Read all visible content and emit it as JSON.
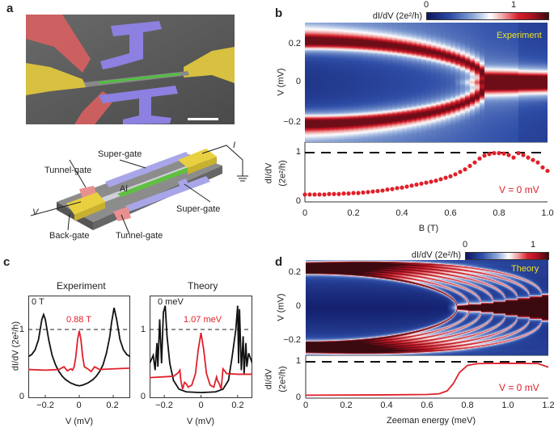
{
  "panels": {
    "a": {
      "label": "a",
      "diagram_labels": {
        "super_gate_top": "Super-gate",
        "tunnel_gate_top": "Tunnel-gate",
        "al": "Al",
        "v": "V",
        "i": "I",
        "super_gate_bottom": "Super-gate",
        "back_gate": "Back-gate",
        "tunnel_gate_bottom": "Tunnel-gate"
      },
      "colors": {
        "tunnel_gate": "#e8868a",
        "super_gate": "#9a98e0",
        "lead": "#e8d040",
        "wire": "#60c040",
        "substrate": "#8a8a8a"
      }
    },
    "b": {
      "label": "b",
      "colorbar": {
        "label": "dI/dV (2e²/h)",
        "tick_0": "0",
        "tick_1": "1"
      },
      "heatmap_annotation": "Experiment",
      "heatmap_ylabel": "V (mV)",
      "heatmap_yticks": [
        "0.2",
        "0",
        "−0.2"
      ],
      "line_ylabel_1": "dI/dV",
      "line_ylabel_2": "(2e²/h)",
      "line_yticks": [
        "1",
        "0"
      ],
      "line_annotation": "V = 0 mV",
      "xlabel": "B (T)",
      "xticks": [
        "0",
        "0.2",
        "0.4",
        "0.6",
        "0.8",
        "1.0"
      ]
    },
    "c": {
      "label": "c",
      "ylabel": "dI/dV (2e²/h)",
      "yticks": [
        "1",
        "0"
      ],
      "left": {
        "title": "Experiment",
        "black_label": "0 T",
        "red_label": "0.88 T",
        "xlabel": "V (mV)",
        "xticks": [
          "−0.2",
          "0",
          "0.2"
        ]
      },
      "right": {
        "title": "Theory",
        "black_label": "0 meV",
        "red_label": "1.07 meV",
        "xlabel": "V (mV)",
        "xticks": [
          "−0.2",
          "0",
          "0.2"
        ]
      }
    },
    "d": {
      "label": "d",
      "colorbar": {
        "label": "dI/dV (2e²/h)",
        "tick_0": "0",
        "tick_1": "1"
      },
      "heatmap_annotation": "Theory",
      "heatmap_ylabel": "V (mV)",
      "heatmap_yticks": [
        "0.2",
        "0",
        "−0.2"
      ],
      "line_ylabel_1": "dI/dV",
      "line_ylabel_2": "(2e²/h)",
      "line_yticks": [
        "1",
        "0"
      ],
      "line_annotation": "V = 0 mV",
      "xlabel": "Zeeman energy (meV)",
      "xticks": [
        "0",
        "0.2",
        "0.4",
        "0.6",
        "0.8",
        "1.0",
        "1.2"
      ]
    }
  },
  "chart_data": [
    {
      "id": "b-heatmap",
      "type": "heatmap",
      "xlabel": "B (T)",
      "ylabel": "V (mV)",
      "xlim": [
        0,
        1.0
      ],
      "ylim": [
        -0.3,
        0.3
      ],
      "colorbar_label": "dI/dV (2e²/h)",
      "clim": [
        0,
        1.4
      ],
      "annotation": "Experiment",
      "features": {
        "peak_V_at_B0": 0.2,
        "zero_bias_peak_onset_B": 0.7
      }
    },
    {
      "id": "b-line",
      "type": "scatter",
      "xlabel": "B (T)",
      "ylabel": "dI/dV (2e²/h)",
      "xlim": [
        0,
        1.0
      ],
      "ylim": [
        0,
        1.1
      ],
      "reference_line_y": 1,
      "color": "#e0202a",
      "annotation": "V = 0 mV",
      "x": [
        0,
        0.02,
        0.04,
        0.06,
        0.08,
        0.1,
        0.12,
        0.14,
        0.16,
        0.18,
        0.2,
        0.22,
        0.24,
        0.26,
        0.28,
        0.3,
        0.32,
        0.34,
        0.36,
        0.38,
        0.4,
        0.42,
        0.44,
        0.46,
        0.48,
        0.5,
        0.52,
        0.54,
        0.56,
        0.58,
        0.6,
        0.62,
        0.64,
        0.66,
        0.68,
        0.7,
        0.72,
        0.74,
        0.76,
        0.78,
        0.8,
        0.82,
        0.84,
        0.86,
        0.88,
        0.9,
        0.92,
        0.94,
        0.96,
        0.98,
        1.0
      ],
      "y": [
        0.15,
        0.15,
        0.15,
        0.15,
        0.15,
        0.16,
        0.16,
        0.16,
        0.17,
        0.17,
        0.18,
        0.18,
        0.19,
        0.2,
        0.21,
        0.22,
        0.23,
        0.25,
        0.26,
        0.28,
        0.29,
        0.31,
        0.33,
        0.35,
        0.37,
        0.39,
        0.41,
        0.43,
        0.46,
        0.49,
        0.52,
        0.56,
        0.61,
        0.66,
        0.73,
        0.8,
        0.88,
        0.94,
        0.97,
        0.99,
        0.99,
        0.98,
        0.95,
        0.9,
        0.99,
        0.95,
        0.9,
        0.85,
        0.8,
        0.7,
        0.63
      ]
    },
    {
      "id": "c-experiment",
      "type": "line",
      "title": "Experiment",
      "xlabel": "V (mV)",
      "ylabel": "dI/dV (2e²/h)",
      "xlim": [
        -0.3,
        0.3
      ],
      "ylim": [
        0,
        1.5
      ],
      "reference_line_y": 1,
      "series": [
        {
          "name": "0 T",
          "color": "#111111",
          "x": [
            -0.3,
            -0.28,
            -0.26,
            -0.24,
            -0.22,
            -0.21,
            -0.2,
            -0.18,
            -0.16,
            -0.14,
            -0.12,
            -0.1,
            -0.08,
            -0.05,
            -0.02,
            0,
            0.02,
            0.05,
            0.08,
            0.1,
            0.12,
            0.14,
            0.16,
            0.18,
            0.19,
            0.205,
            0.22,
            0.24,
            0.26,
            0.28,
            0.3
          ],
          "y": [
            0.6,
            0.63,
            0.7,
            0.85,
            1.15,
            1.22,
            1.15,
            0.85,
            0.62,
            0.48,
            0.38,
            0.31,
            0.26,
            0.21,
            0.18,
            0.17,
            0.18,
            0.21,
            0.26,
            0.31,
            0.38,
            0.48,
            0.65,
            0.9,
            1.1,
            1.32,
            1.15,
            0.85,
            0.7,
            0.63,
            0.6
          ]
        },
        {
          "name": "0.88 T",
          "color": "#e0202a",
          "x": [
            -0.3,
            -0.2,
            -0.12,
            -0.09,
            -0.07,
            -0.05,
            -0.04,
            -0.03,
            -0.02,
            -0.01,
            0,
            0.01,
            0.02,
            0.03,
            0.05,
            0.07,
            0.09,
            0.12,
            0.2,
            0.3
          ],
          "y": [
            0.41,
            0.4,
            0.41,
            0.45,
            0.39,
            0.42,
            0.4,
            0.45,
            0.6,
            0.85,
            0.98,
            0.85,
            0.6,
            0.45,
            0.42,
            0.38,
            0.45,
            0.41,
            0.42,
            0.43
          ]
        }
      ]
    },
    {
      "id": "c-theory",
      "type": "line",
      "title": "Theory",
      "xlabel": "V (mV)",
      "ylabel": "dI/dV (2e²/h)",
      "xlim": [
        -0.28,
        0.28
      ],
      "ylim": [
        0,
        1.5
      ],
      "reference_line_y": 1,
      "series": [
        {
          "name": "0 meV",
          "color": "#111111",
          "x": [
            -0.28,
            -0.26,
            -0.25,
            -0.24,
            -0.235,
            -0.225,
            -0.215,
            -0.205,
            -0.195,
            -0.185,
            -0.17,
            -0.15,
            -0.12,
            -0.08,
            0,
            0.08,
            0.12,
            0.15,
            0.17,
            0.19,
            0.2,
            0.205,
            0.21,
            0.22,
            0.23,
            0.235,
            0.245,
            0.25,
            0.26,
            0.28
          ],
          "y": [
            0.5,
            0.62,
            0.4,
            0.8,
            0.45,
            1.15,
            0.5,
            1.25,
            1.35,
            0.9,
            0.5,
            0.25,
            0.12,
            0.08,
            0.07,
            0.08,
            0.12,
            0.25,
            0.6,
            1.0,
            1.35,
            0.5,
            1.3,
            0.4,
            0.9,
            0.35,
            0.8,
            0.45,
            0.65,
            0.5
          ]
        },
        {
          "name": "1.07 meV",
          "color": "#e0202a",
          "x": [
            -0.28,
            -0.15,
            -0.125,
            -0.115,
            -0.11,
            -0.1,
            -0.09,
            -0.08,
            -0.07,
            -0.05,
            -0.03,
            -0.015,
            0,
            0.015,
            0.03,
            0.05,
            0.07,
            0.085,
            0.09,
            0.1,
            0.11,
            0.12,
            0.14,
            0.2,
            0.28
          ],
          "y": [
            0.29,
            0.31,
            0.36,
            0.4,
            0.25,
            0.12,
            0.22,
            0.2,
            0.15,
            0.18,
            0.35,
            0.7,
            0.95,
            0.7,
            0.35,
            0.18,
            0.15,
            0.3,
            0.25,
            0.2,
            0.12,
            0.42,
            0.35,
            0.34,
            0.34
          ]
        }
      ]
    },
    {
      "id": "d-heatmap",
      "type": "heatmap",
      "xlabel": "Zeeman energy (meV)",
      "ylabel": "V (mV)",
      "xlim": [
        0,
        1.2
      ],
      "ylim": [
        -0.27,
        0.27
      ],
      "colorbar_label": "dI/dV (2e²/h)",
      "clim": [
        0,
        1.4
      ],
      "annotation": "Theory",
      "features": {
        "peak_V_at_Z0": 0.2,
        "zero_bias_peak_onset_Z": 0.75
      }
    },
    {
      "id": "d-line",
      "type": "line",
      "xlabel": "Zeeman energy (meV)",
      "ylabel": "dI/dV (2e²/h)",
      "xlim": [
        0,
        1.2
      ],
      "ylim": [
        0,
        1.1
      ],
      "reference_line_y": 1,
      "color": "#e0202a",
      "annotation": "V = 0 mV",
      "x": [
        0,
        0.4,
        0.6,
        0.66,
        0.7,
        0.73,
        0.76,
        0.8,
        0.85,
        1.0,
        1.15,
        1.2
      ],
      "y": [
        0.08,
        0.09,
        0.1,
        0.12,
        0.2,
        0.4,
        0.7,
        0.9,
        0.95,
        0.96,
        0.95,
        0.85
      ]
    }
  ]
}
